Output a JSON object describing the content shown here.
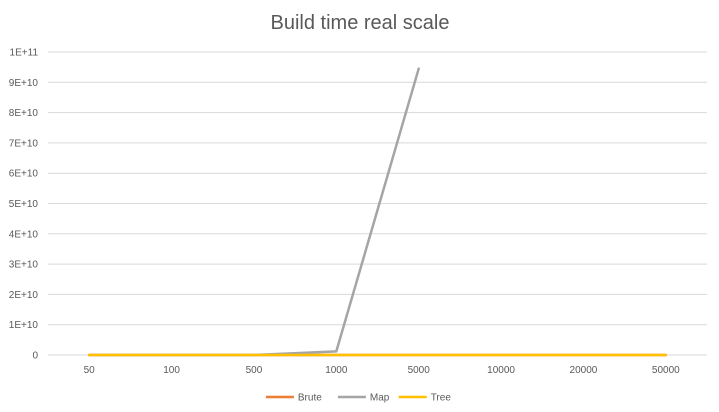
{
  "chart_data": {
    "type": "line",
    "title": "Build time real scale",
    "categories": [
      "50",
      "100",
      "500",
      "1000",
      "5000",
      "10000",
      "20000",
      "50000"
    ],
    "y_ticks": [
      "0",
      "1E+10",
      "2E+10",
      "3E+10",
      "4E+10",
      "5E+10",
      "6E+10",
      "7E+10",
      "8E+10",
      "9E+10",
      "1E+11"
    ],
    "ylim": [
      0,
      100000000000
    ],
    "grid": true,
    "legend_position": "bottom",
    "series": [
      {
        "name": "Brute",
        "color": "#ed7d31",
        "values": [
          0,
          0,
          0,
          0,
          0,
          0,
          0,
          0
        ]
      },
      {
        "name": "Map",
        "color": "#a5a5a5",
        "values": [
          0,
          0,
          0,
          1200000000,
          94500000000,
          null,
          null,
          null
        ]
      },
      {
        "name": "Tree",
        "color": "#ffc000",
        "values": [
          0,
          0,
          0,
          0,
          0,
          0,
          0,
          0
        ]
      }
    ]
  }
}
